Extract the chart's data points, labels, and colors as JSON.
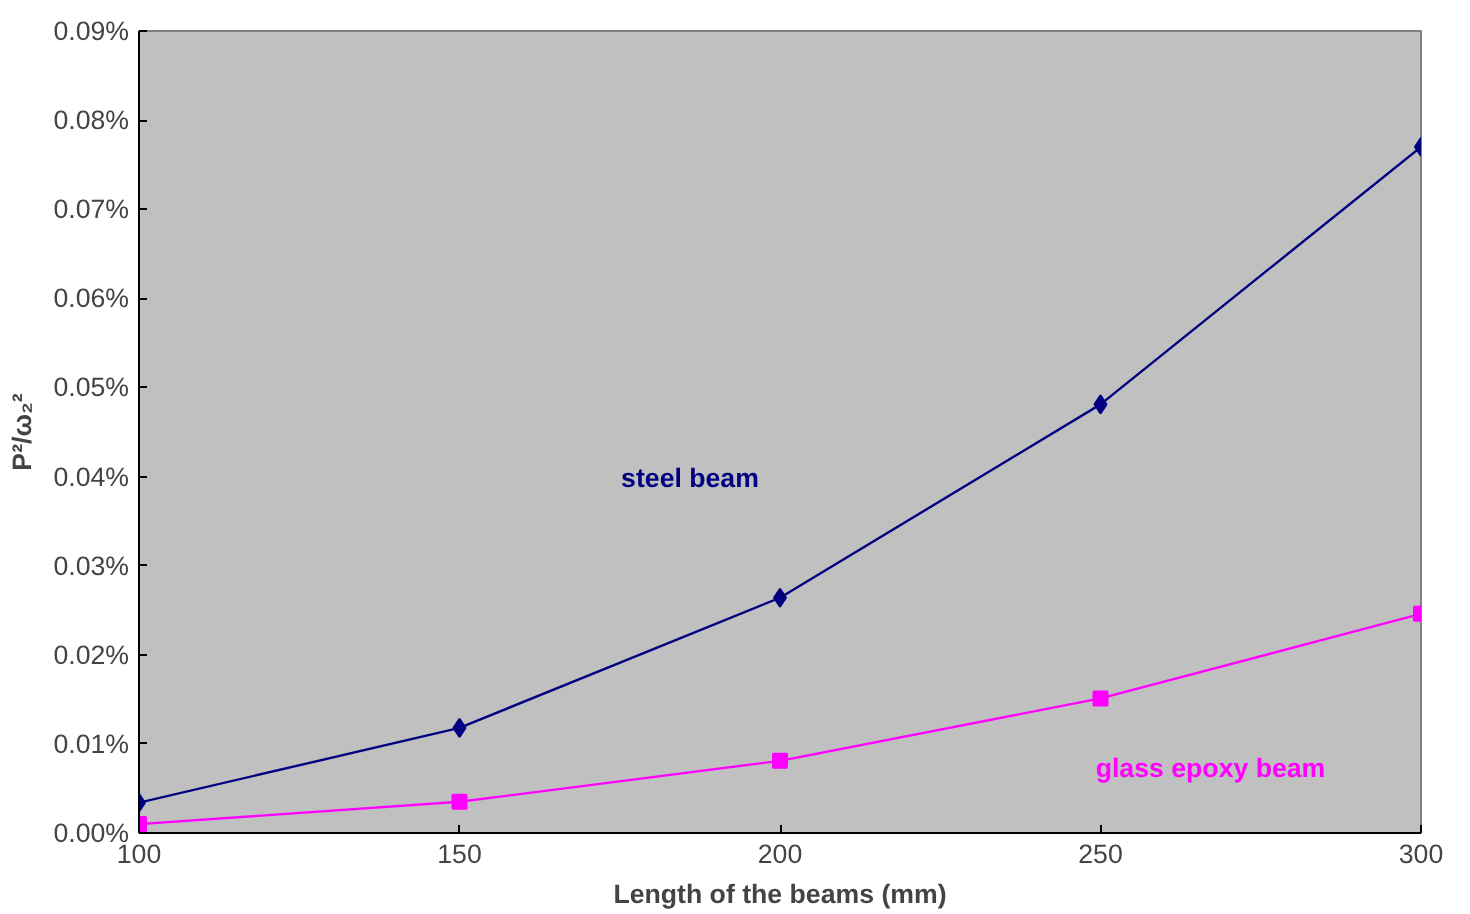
{
  "chart_data": {
    "type": "line",
    "xlabel": "Length of the beams (mm)",
    "ylabel": "P²/ω₂²",
    "x": [
      100,
      150,
      200,
      250,
      300
    ],
    "series": [
      {
        "name": "steel beam",
        "color": "#000080",
        "marker": "diamond",
        "values": [
          0.0034,
          0.0118,
          0.0264,
          0.0481,
          0.077
        ]
      },
      {
        "name": "glass epoxy beam",
        "color": "#ff00ff",
        "marker": "square",
        "values": [
          0.001,
          0.0035,
          0.0081,
          0.0151,
          0.0246
        ]
      }
    ],
    "xlim": [
      100,
      300
    ],
    "xticks": [
      100,
      150,
      200,
      250,
      300
    ],
    "ylim": [
      0,
      0.09
    ],
    "yticks": [
      {
        "value": 0,
        "label": "0.00%"
      },
      {
        "value": 0.01,
        "label": "0.01%"
      },
      {
        "value": 0.02,
        "label": "0.02%"
      },
      {
        "value": 0.03,
        "label": "0.03%"
      },
      {
        "value": 0.04,
        "label": "0.04%"
      },
      {
        "value": 0.05,
        "label": "0.05%"
      },
      {
        "value": 0.06,
        "label": "0.06%"
      },
      {
        "value": 0.07,
        "label": "0.07%"
      },
      {
        "value": 0.08,
        "label": "0.08%"
      },
      {
        "value": 0.09,
        "label": "0.09%"
      }
    ],
    "grid": false
  }
}
